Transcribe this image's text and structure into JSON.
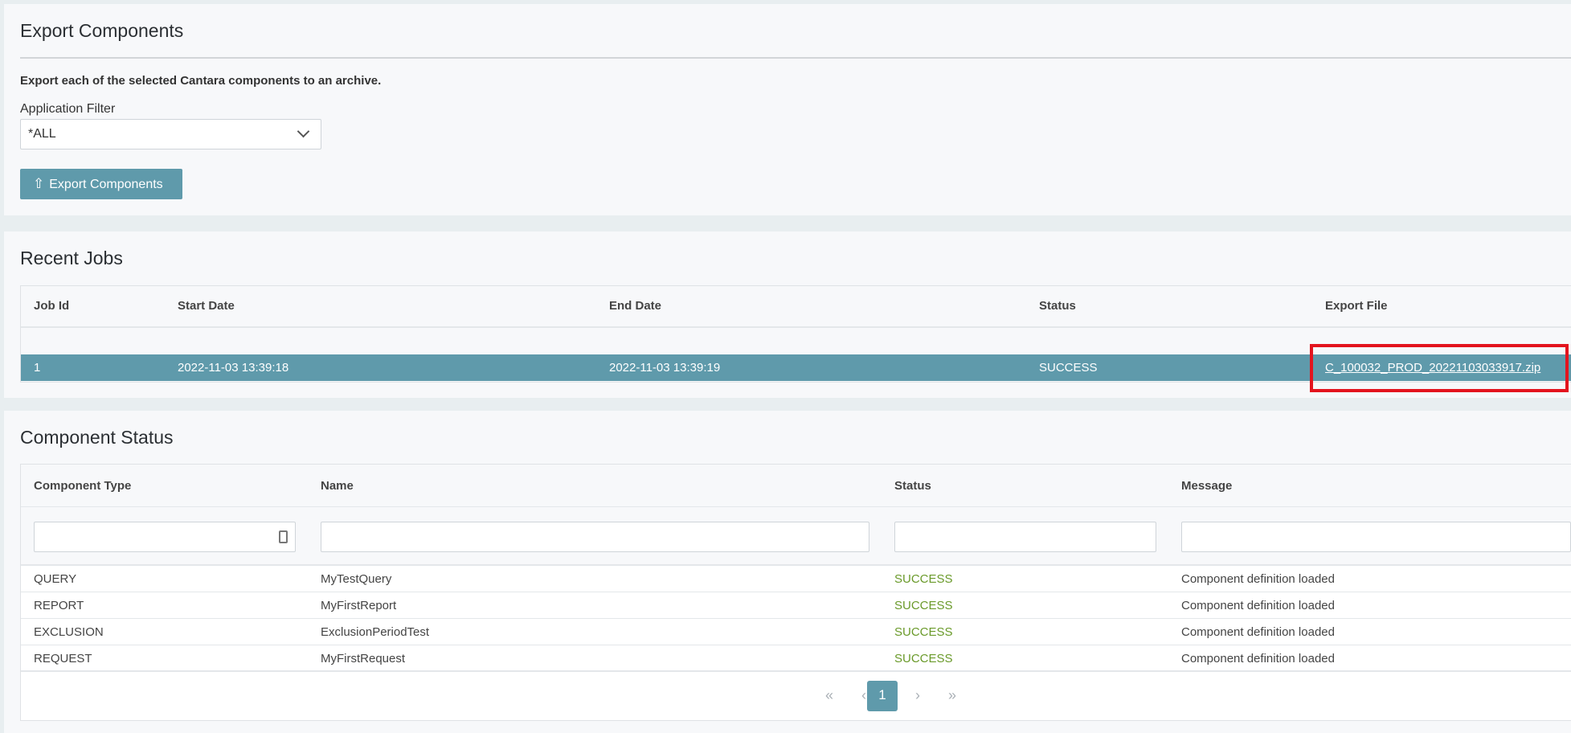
{
  "export": {
    "title": "Export Components",
    "description": "Export each of the selected Cantara components to an archive.",
    "filter_label": "Application Filter",
    "filter_value": "*ALL",
    "button_label": "Export Components"
  },
  "jobs": {
    "title": "Recent Jobs",
    "columns": [
      "Job Id",
      "Start Date",
      "End Date",
      "Status",
      "Export File"
    ],
    "rows": [
      {
        "job_id": "1",
        "start": "2022-11-03 13:39:18",
        "end": "2022-11-03 13:39:19",
        "status": "SUCCESS",
        "file": "C_100032_PROD_20221103033917.zip"
      }
    ]
  },
  "components": {
    "title": "Component Status",
    "columns": [
      "Component Type",
      "Name",
      "Status",
      "Message"
    ],
    "rows": [
      {
        "type": "QUERY",
        "name": "MyTestQuery",
        "status": "SUCCESS",
        "message": "Component definition loaded"
      },
      {
        "type": "REPORT",
        "name": "MyFirstReport",
        "status": "SUCCESS",
        "message": "Component definition loaded"
      },
      {
        "type": "EXCLUSION",
        "name": "ExclusionPeriodTest",
        "status": "SUCCESS",
        "message": "Component definition loaded"
      },
      {
        "type": "REQUEST",
        "name": "MyFirstRequest",
        "status": "SUCCESS",
        "message": "Component definition loaded"
      }
    ]
  },
  "pagination": {
    "first": "«",
    "prev": "‹",
    "current": "1",
    "next": "›",
    "last": "»"
  },
  "colors": {
    "accent": "#5f9aab",
    "success": "#6a9a2a",
    "highlight_box": "#e3141e"
  }
}
